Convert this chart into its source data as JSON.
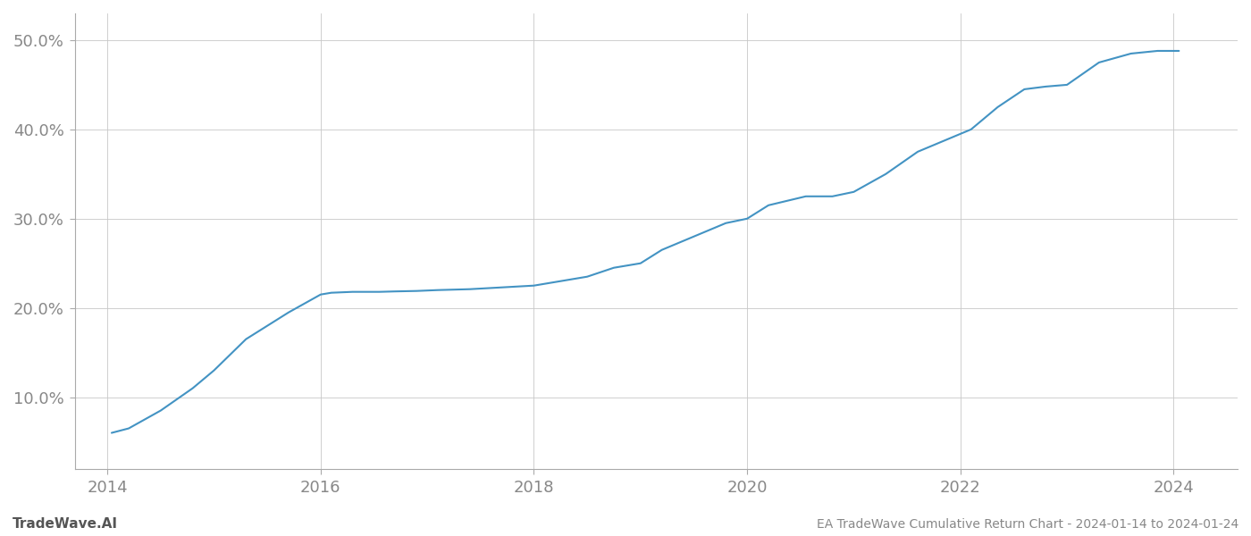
{
  "title": "EA TradeWave Cumulative Return Chart - 2024-01-14 to 2024-01-24",
  "watermark": "TradeWave.AI",
  "line_color": "#4393c3",
  "background_color": "#ffffff",
  "grid_color": "#c8c8c8",
  "x_values": [
    2014.04,
    2014.2,
    2014.5,
    2014.8,
    2015.0,
    2015.3,
    2015.7,
    2016.0,
    2016.1,
    2016.3,
    2016.55,
    2016.7,
    2016.9,
    2017.1,
    2017.4,
    2017.7,
    2018.0,
    2018.25,
    2018.5,
    2018.75,
    2019.0,
    2019.2,
    2019.4,
    2019.6,
    2019.8,
    2020.0,
    2020.2,
    2020.55,
    2020.8,
    2021.0,
    2021.3,
    2021.6,
    2021.9,
    2022.1,
    2022.35,
    2022.6,
    2022.8,
    2023.0,
    2023.3,
    2023.6,
    2023.85,
    2024.05
  ],
  "y_values": [
    6.0,
    6.5,
    8.5,
    11.0,
    13.0,
    16.5,
    19.5,
    21.5,
    21.7,
    21.8,
    21.8,
    21.85,
    21.9,
    22.0,
    22.1,
    22.3,
    22.5,
    23.0,
    23.5,
    24.5,
    25.0,
    26.5,
    27.5,
    28.5,
    29.5,
    30.0,
    31.5,
    32.5,
    32.5,
    33.0,
    35.0,
    37.5,
    39.0,
    40.0,
    42.5,
    44.5,
    44.8,
    45.0,
    47.5,
    48.5,
    48.8,
    48.8
  ],
  "xlim": [
    2013.7,
    2024.6
  ],
  "ylim": [
    2.0,
    53.0
  ],
  "yticks": [
    10.0,
    20.0,
    30.0,
    40.0,
    50.0
  ],
  "ytick_labels": [
    "10.0%",
    "20.0%",
    "30.0%",
    "40.0%",
    "50.0%"
  ],
  "xticks": [
    2014,
    2016,
    2018,
    2020,
    2022,
    2024
  ],
  "xtick_labels": [
    "2014",
    "2016",
    "2018",
    "2020",
    "2022",
    "2024"
  ],
  "line_width": 1.5,
  "tick_fontsize": 13,
  "label_fontsize": 10,
  "title_fontsize": 11
}
